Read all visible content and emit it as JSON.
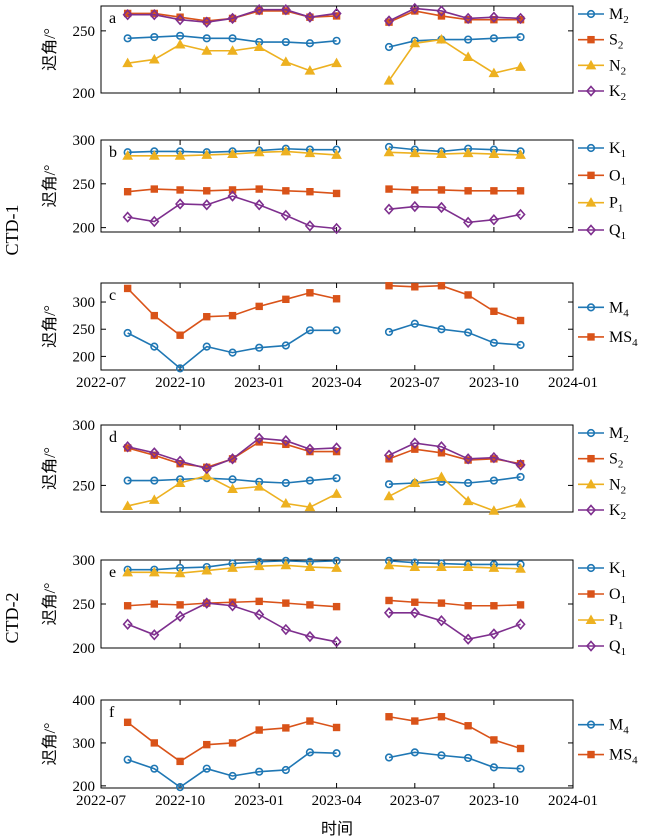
{
  "colors": {
    "blue": "#1f77b4",
    "orange": "#d95319",
    "yellow": "#edb120",
    "purple": "#7e2f8e"
  },
  "groups": [
    {
      "label": "CTD-1",
      "panels": [
        0,
        1,
        2
      ]
    },
    {
      "label": "CTD-2",
      "panels": [
        3,
        4,
        5
      ]
    }
  ],
  "bottom_xlabel": "时间",
  "chart_data": [
    {
      "type": "line",
      "panel_label": "a",
      "ylabel": "迟角/°",
      "ylim": [
        200,
        270
      ],
      "yticks": [
        200,
        250
      ],
      "xlim": [
        "2022-07-01",
        "2024-01-01"
      ],
      "show_xticks": false,
      "x": [
        "2022-08-01",
        "2022-09-01",
        "2022-10-01",
        "2022-11-01",
        "2022-12-01",
        "2023-01-01",
        "2023-02-01",
        "2023-03-01",
        "2023-04-01",
        null,
        "2023-06-01",
        "2023-07-01",
        "2023-08-01",
        "2023-09-01",
        "2023-10-01",
        "2023-11-01"
      ],
      "series": [
        {
          "name": "M2",
          "sub": "2",
          "base": "M",
          "color": "blue",
          "marker": "circle",
          "values": [
            244,
            245,
            246,
            244,
            244,
            241,
            241,
            240,
            242,
            null,
            237,
            242,
            243,
            243,
            244,
            245
          ]
        },
        {
          "name": "S2",
          "sub": "2",
          "base": "S",
          "color": "orange",
          "marker": "square",
          "values": [
            264,
            264,
            261,
            258,
            260,
            266,
            266,
            261,
            262,
            null,
            257,
            266,
            262,
            259,
            259,
            259
          ]
        },
        {
          "name": "N2",
          "sub": "2",
          "base": "N",
          "color": "yellow",
          "marker": "triangle",
          "values": [
            224,
            227,
            239,
            234,
            234,
            237,
            225,
            218,
            224,
            null,
            210,
            240,
            243,
            229,
            216,
            221
          ]
        },
        {
          "name": "K2",
          "sub": "2",
          "base": "K",
          "color": "purple",
          "marker": "diamond",
          "values": [
            263,
            263,
            259,
            257,
            260,
            267,
            267,
            261,
            264,
            null,
            258,
            268,
            266,
            260,
            261,
            260
          ]
        }
      ]
    },
    {
      "type": "line",
      "panel_label": "b",
      "ylabel": "迟角/°",
      "ylim": [
        195,
        300
      ],
      "yticks": [
        200,
        250,
        300
      ],
      "xlim": [
        "2022-07-01",
        "2024-01-01"
      ],
      "show_xticks": false,
      "x": [
        "2022-08-01",
        "2022-09-01",
        "2022-10-01",
        "2022-11-01",
        "2022-12-01",
        "2023-01-01",
        "2023-02-01",
        "2023-03-01",
        "2023-04-01",
        null,
        "2023-06-01",
        "2023-07-01",
        "2023-08-01",
        "2023-09-01",
        "2023-10-01",
        "2023-11-01"
      ],
      "series": [
        {
          "name": "K1",
          "sub": "1",
          "base": "K",
          "color": "blue",
          "marker": "circle",
          "values": [
            286,
            287,
            287,
            286,
            287,
            288,
            290,
            289,
            289,
            null,
            292,
            289,
            287,
            290,
            289,
            287
          ]
        },
        {
          "name": "O1",
          "sub": "1",
          "base": "O",
          "color": "orange",
          "marker": "square",
          "values": [
            241,
            244,
            243,
            242,
            243,
            244,
            242,
            241,
            239,
            null,
            244,
            243,
            243,
            242,
            242,
            242
          ]
        },
        {
          "name": "P1",
          "sub": "1",
          "base": "P",
          "color": "yellow",
          "marker": "triangle",
          "values": [
            282,
            282,
            282,
            283,
            284,
            286,
            287,
            285,
            283,
            null,
            286,
            285,
            284,
            285,
            284,
            283
          ]
        },
        {
          "name": "Q1",
          "sub": "1",
          "base": "Q",
          "color": "purple",
          "marker": "diamond",
          "values": [
            212,
            207,
            227,
            226,
            236,
            226,
            214,
            202,
            199,
            null,
            221,
            224,
            223,
            206,
            209,
            215
          ]
        }
      ]
    },
    {
      "type": "line",
      "panel_label": "c",
      "ylabel": "迟角/°",
      "ylim": [
        175,
        335
      ],
      "yticks": [
        200,
        250,
        300
      ],
      "xlim": [
        "2022-07-01",
        "2024-01-01"
      ],
      "show_xticks": true,
      "xtick_labels": [
        "2022-07",
        "2022-10",
        "2023-01",
        "2023-04",
        "2023-07",
        "2023-10",
        "2024-01"
      ],
      "xtick_dates": [
        "2022-07-01",
        "2022-10-01",
        "2023-01-01",
        "2023-04-01",
        "2023-07-01",
        "2023-10-01",
        "2024-01-01"
      ],
      "x": [
        "2022-08-01",
        "2022-09-01",
        "2022-10-01",
        "2022-11-01",
        "2022-12-01",
        "2023-01-01",
        "2023-02-01",
        "2023-03-01",
        "2023-04-01",
        null,
        "2023-06-01",
        "2023-07-01",
        "2023-08-01",
        "2023-09-01",
        "2023-10-01",
        "2023-11-01"
      ],
      "series": [
        {
          "name": "M4",
          "sub": "4",
          "base": "M",
          "color": "blue",
          "marker": "circle",
          "values": [
            243,
            218,
            178,
            218,
            207,
            216,
            220,
            248,
            248,
            null,
            245,
            260,
            250,
            244,
            225,
            221
          ]
        },
        {
          "name": "MS4",
          "sub": "4",
          "base": "MS",
          "color": "orange",
          "marker": "square",
          "values": [
            325,
            275,
            239,
            273,
            275,
            292,
            305,
            317,
            306,
            null,
            330,
            328,
            330,
            313,
            283,
            266
          ]
        }
      ]
    },
    {
      "type": "line",
      "panel_label": "d",
      "ylabel": "迟角/°",
      "ylim": [
        228,
        300
      ],
      "yticks": [
        250,
        300
      ],
      "xlim": [
        "2022-07-01",
        "2024-01-01"
      ],
      "show_xticks": false,
      "x": [
        "2022-08-01",
        "2022-09-01",
        "2022-10-01",
        "2022-11-01",
        "2022-12-01",
        "2023-01-01",
        "2023-02-01",
        "2023-03-01",
        "2023-04-01",
        null,
        "2023-06-01",
        "2023-07-01",
        "2023-08-01",
        "2023-09-01",
        "2023-10-01",
        "2023-11-01"
      ],
      "series": [
        {
          "name": "M2",
          "sub": "2",
          "base": "M",
          "color": "blue",
          "marker": "circle",
          "values": [
            254,
            254,
            255,
            256,
            255,
            253,
            252,
            254,
            256,
            null,
            251,
            252,
            253,
            252,
            254,
            257
          ]
        },
        {
          "name": "S2",
          "sub": "2",
          "base": "S",
          "color": "orange",
          "marker": "square",
          "values": [
            281,
            275,
            268,
            265,
            272,
            286,
            284,
            278,
            278,
            null,
            272,
            280,
            277,
            271,
            272,
            268
          ]
        },
        {
          "name": "N2",
          "sub": "2",
          "base": "N",
          "color": "yellow",
          "marker": "triangle",
          "values": [
            233,
            238,
            252,
            258,
            247,
            249,
            235,
            232,
            243,
            null,
            241,
            252,
            257,
            237,
            229,
            235
          ]
        },
        {
          "name": "K2",
          "sub": "2",
          "base": "K",
          "color": "purple",
          "marker": "diamond",
          "values": [
            282,
            277,
            270,
            264,
            272,
            289,
            287,
            280,
            281,
            null,
            275,
            285,
            282,
            272,
            273,
            267
          ]
        }
      ]
    },
    {
      "type": "line",
      "panel_label": "e",
      "ylabel": "迟角/°",
      "ylim": [
        200,
        300
      ],
      "yticks": [
        200,
        250,
        300
      ],
      "xlim": [
        "2022-07-01",
        "2024-01-01"
      ],
      "show_xticks": false,
      "x": [
        "2022-08-01",
        "2022-09-01",
        "2022-10-01",
        "2022-11-01",
        "2022-12-01",
        "2023-01-01",
        "2023-02-01",
        "2023-03-01",
        "2023-04-01",
        null,
        "2023-06-01",
        "2023-07-01",
        "2023-08-01",
        "2023-09-01",
        "2023-10-01",
        "2023-11-01"
      ],
      "series": [
        {
          "name": "K1",
          "sub": "1",
          "base": "K",
          "color": "blue",
          "marker": "circle",
          "values": [
            289,
            289,
            291,
            292,
            296,
            298,
            299,
            298,
            299,
            null,
            299,
            297,
            296,
            295,
            295,
            295
          ]
        },
        {
          "name": "O1",
          "sub": "1",
          "base": "O",
          "color": "orange",
          "marker": "square",
          "values": [
            248,
            250,
            249,
            251,
            252,
            253,
            251,
            249,
            247,
            null,
            254,
            252,
            251,
            248,
            248,
            249
          ]
        },
        {
          "name": "P1",
          "sub": "1",
          "base": "P",
          "color": "yellow",
          "marker": "triangle",
          "values": [
            286,
            286,
            285,
            288,
            291,
            293,
            294,
            292,
            291,
            null,
            294,
            292,
            292,
            292,
            291,
            290
          ]
        },
        {
          "name": "Q1",
          "sub": "1",
          "base": "Q",
          "color": "purple",
          "marker": "diamond",
          "values": [
            227,
            215,
            236,
            251,
            248,
            238,
            221,
            213,
            207,
            null,
            240,
            240,
            231,
            210,
            216,
            227
          ]
        }
      ]
    },
    {
      "type": "line",
      "panel_label": "f",
      "ylabel": "迟角/°",
      "ylim": [
        195,
        400
      ],
      "yticks": [
        200,
        300,
        400
      ],
      "xlim": [
        "2022-07-01",
        "2024-01-01"
      ],
      "show_xticks": true,
      "xtick_labels": [
        "2022-07",
        "2022-10",
        "2023-01",
        "2023-04",
        "2023-07",
        "2023-10",
        "2024-01"
      ],
      "xtick_dates": [
        "2022-07-01",
        "2022-10-01",
        "2023-01-01",
        "2023-04-01",
        "2023-07-01",
        "2023-10-01",
        "2024-01-01"
      ],
      "x": [
        "2022-08-01",
        "2022-09-01",
        "2022-10-01",
        "2022-11-01",
        "2022-12-01",
        "2023-01-01",
        "2023-02-01",
        "2023-03-01",
        "2023-04-01",
        null,
        "2023-06-01",
        "2023-07-01",
        "2023-08-01",
        "2023-09-01",
        "2023-10-01",
        "2023-11-01"
      ],
      "series": [
        {
          "name": "M4",
          "sub": "4",
          "base": "M",
          "color": "blue",
          "marker": "circle",
          "values": [
            261,
            240,
            197,
            240,
            223,
            233,
            237,
            278,
            276,
            null,
            266,
            278,
            271,
            265,
            243,
            240
          ]
        },
        {
          "name": "MS4",
          "sub": "4",
          "base": "MS",
          "color": "orange",
          "marker": "square",
          "values": [
            348,
            300,
            257,
            296,
            300,
            330,
            335,
            351,
            336,
            null,
            361,
            351,
            361,
            340,
            307,
            287
          ]
        }
      ]
    }
  ]
}
